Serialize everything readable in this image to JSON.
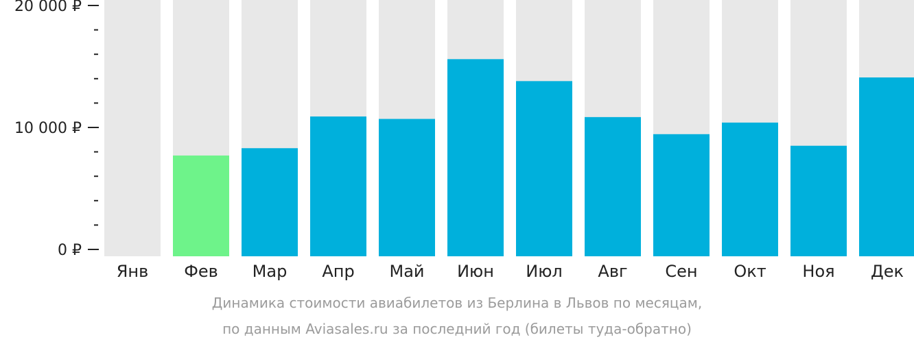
{
  "chart_data": {
    "type": "bar",
    "categories": [
      "Янв",
      "Фев",
      "Мар",
      "Апр",
      "Май",
      "Июн",
      "Июл",
      "Авг",
      "Сен",
      "Окт",
      "Ноя",
      "Дек"
    ],
    "values": [
      null,
      7700,
      8300,
      10900,
      10700,
      15600,
      13800,
      10850,
      9450,
      10400,
      8500,
      14100
    ],
    "ylim": [
      0,
      20000
    ],
    "ytick_labels": [
      {
        "value": 0,
        "label": "0 ₽"
      },
      {
        "value": 10000,
        "label": "10 000 ₽"
      },
      {
        "value": 20000,
        "label": "20 000 ₽"
      }
    ],
    "minor_tick_step": 2000,
    "highlight_index": 1,
    "colors": {
      "bar": "#00b0dc",
      "highlight": "#6ef38a",
      "background_bar": "#e8e8e8",
      "axis": "#222222"
    }
  },
  "caption": {
    "line1": "Динамика стоимости авиабилетов из Берлина в Львов по месяцам,",
    "line2": "по данным Aviasales.ru за последний год (билеты туда-обратно)"
  }
}
